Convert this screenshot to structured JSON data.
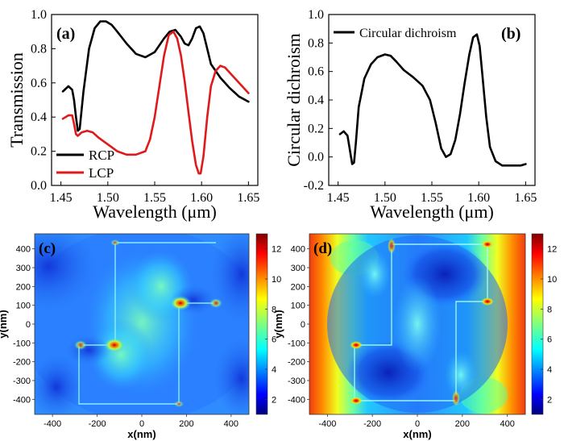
{
  "chart_data": [
    {
      "panel": "(a)",
      "type": "line",
      "xlabel": "Wavelength (μm)",
      "ylabel": "Transmission",
      "xlim": [
        1.44,
        1.66
      ],
      "ylim": [
        0.0,
        1.0
      ],
      "xticks": [
        "1.45",
        "1.50",
        "1.55",
        "1.60",
        "1.65"
      ],
      "yticks": [
        "0.0",
        "0.2",
        "0.4",
        "0.6",
        "0.8",
        "1.0"
      ],
      "legend_position": "bottom-left",
      "series": [
        {
          "name": "RCP",
          "color": "#000000",
          "x": [
            1.452,
            1.458,
            1.462,
            1.464,
            1.466,
            1.468,
            1.47,
            1.474,
            1.48,
            1.486,
            1.492,
            1.498,
            1.504,
            1.51,
            1.52,
            1.53,
            1.54,
            1.55,
            1.56,
            1.566,
            1.572,
            1.578,
            1.582,
            1.586,
            1.59,
            1.594,
            1.598,
            1.602,
            1.606,
            1.61,
            1.62,
            1.63,
            1.64,
            1.65
          ],
          "y": [
            0.55,
            0.58,
            0.56,
            0.5,
            0.4,
            0.32,
            0.33,
            0.55,
            0.8,
            0.92,
            0.96,
            0.96,
            0.94,
            0.9,
            0.83,
            0.77,
            0.75,
            0.78,
            0.86,
            0.9,
            0.91,
            0.87,
            0.83,
            0.82,
            0.86,
            0.92,
            0.93,
            0.89,
            0.8,
            0.71,
            0.63,
            0.57,
            0.52,
            0.49
          ]
        },
        {
          "name": "LCP",
          "color": "#e0191b",
          "x": [
            1.452,
            1.458,
            1.462,
            1.464,
            1.466,
            1.468,
            1.472,
            1.478,
            1.484,
            1.49,
            1.5,
            1.51,
            1.52,
            1.53,
            1.54,
            1.545,
            1.55,
            1.555,
            1.56,
            1.565,
            1.57,
            1.574,
            1.578,
            1.582,
            1.586,
            1.59,
            1.594,
            1.597,
            1.599,
            1.602,
            1.606,
            1.61,
            1.615,
            1.62,
            1.625,
            1.63,
            1.64,
            1.65
          ],
          "y": [
            0.39,
            0.41,
            0.41,
            0.36,
            0.3,
            0.29,
            0.31,
            0.32,
            0.31,
            0.28,
            0.24,
            0.2,
            0.18,
            0.18,
            0.2,
            0.27,
            0.4,
            0.58,
            0.76,
            0.88,
            0.9,
            0.86,
            0.76,
            0.61,
            0.43,
            0.26,
            0.12,
            0.07,
            0.07,
            0.17,
            0.4,
            0.58,
            0.67,
            0.7,
            0.69,
            0.66,
            0.6,
            0.54
          ]
        }
      ]
    },
    {
      "panel": "(b)",
      "type": "line",
      "xlabel": "Wavelength (μm)",
      "ylabel": "Circular dichroism",
      "xlim": [
        1.44,
        1.66
      ],
      "ylim": [
        -0.2,
        1.0
      ],
      "xticks": [
        "1.45",
        "1.50",
        "1.55",
        "1.60",
        "1.65"
      ],
      "yticks": [
        "-0.2",
        "0.0",
        "0.2",
        "0.4",
        "0.6",
        "0.8",
        "1.0"
      ],
      "legend_position": "top-left",
      "series": [
        {
          "name": "Circular dichroism",
          "color": "#000000",
          "x": [
            1.452,
            1.456,
            1.46,
            1.463,
            1.465,
            1.467,
            1.469,
            1.472,
            1.478,
            1.485,
            1.492,
            1.5,
            1.506,
            1.512,
            1.52,
            1.53,
            1.54,
            1.548,
            1.554,
            1.56,
            1.565,
            1.57,
            1.575,
            1.58,
            1.585,
            1.59,
            1.594,
            1.598,
            1.601,
            1.604,
            1.608,
            1.612,
            1.618,
            1.625,
            1.635,
            1.645,
            1.65
          ],
          "y": [
            0.16,
            0.18,
            0.15,
            0.03,
            -0.05,
            -0.04,
            0.1,
            0.35,
            0.55,
            0.65,
            0.7,
            0.72,
            0.71,
            0.67,
            0.61,
            0.56,
            0.5,
            0.4,
            0.24,
            0.06,
            0.0,
            0.02,
            0.12,
            0.3,
            0.52,
            0.72,
            0.84,
            0.86,
            0.78,
            0.57,
            0.28,
            0.07,
            -0.03,
            -0.06,
            -0.06,
            -0.06,
            -0.05
          ]
        }
      ]
    },
    {
      "panel": "(c)",
      "type": "heatmap",
      "xlabel": "x(nm)",
      "ylabel": "y(nm)",
      "xlim": [
        -480,
        480
      ],
      "ylim": [
        -480,
        480
      ],
      "xticks": [
        "-400",
        "-200",
        "0",
        "200",
        "400"
      ],
      "yticks": [
        "-400",
        "-300",
        "-200",
        "-100",
        "0",
        "100",
        "200",
        "300",
        "400"
      ],
      "colorbar_ticks": [
        "2",
        "4",
        "6",
        "8",
        "10",
        "12"
      ],
      "colorbar_range": [
        1,
        13
      ]
    },
    {
      "panel": "(d)",
      "type": "heatmap",
      "xlabel": "x(nm)",
      "ylabel": "y(nm)",
      "xlim": [
        -480,
        480
      ],
      "ylim": [
        -480,
        480
      ],
      "xticks": [
        "-400",
        "-200",
        "0",
        "200",
        "400"
      ],
      "yticks": [
        "-400",
        "-300",
        "-200",
        "-100",
        "0",
        "100",
        "200",
        "300",
        "400"
      ],
      "colorbar_ticks": [
        "2",
        "4",
        "6",
        "8",
        "10",
        "12"
      ],
      "colorbar_range": [
        1,
        13
      ]
    }
  ]
}
